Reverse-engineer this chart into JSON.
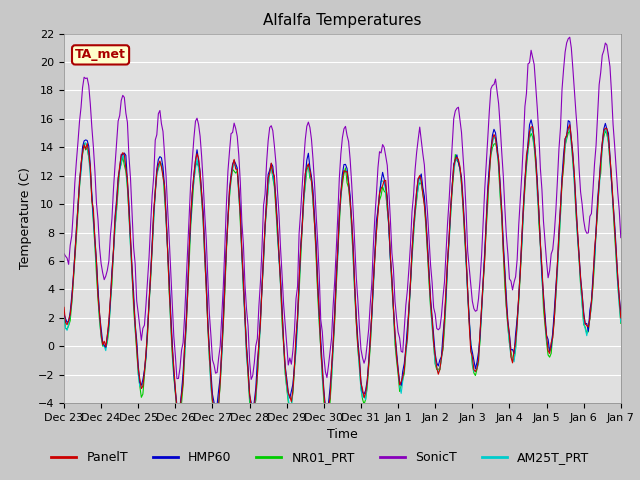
{
  "title": "Alfalfa Temperatures",
  "xlabel": "Time",
  "ylabel": "Temperature (C)",
  "ylim": [
    -4,
    22
  ],
  "yticks": [
    -4,
    -2,
    0,
    2,
    4,
    6,
    8,
    10,
    12,
    14,
    16,
    18,
    20,
    22
  ],
  "xtick_labels": [
    "Dec 23",
    "Dec 24",
    "Dec 25",
    "Dec 26",
    "Dec 27",
    "Dec 28",
    "Dec 29",
    "Dec 30",
    "Dec 31",
    "Jan 1",
    "Jan 2",
    "Jan 3",
    "Jan 4",
    "Jan 5",
    "Jan 6",
    "Jan 7"
  ],
  "legend_entries": [
    {
      "label": "PanelT",
      "color": "#cc0000"
    },
    {
      "label": "HMP60",
      "color": "#0000cc"
    },
    {
      "label": "NR01_PRT",
      "color": "#00cc00"
    },
    {
      "label": "SonicT",
      "color": "#8800bb"
    },
    {
      "label": "AM25T_PRT",
      "color": "#00cccc"
    }
  ],
  "annotation_text": "TA_met",
  "annotation_color": "#aa0000",
  "annotation_bg": "#ffffcc",
  "fig_bg": "#c8c8c8",
  "plot_bg": "#e0e0e0",
  "title_fontsize": 11,
  "axis_fontsize": 9,
  "tick_fontsize": 8,
  "legend_fontsize": 9,
  "linewidth": 0.8
}
